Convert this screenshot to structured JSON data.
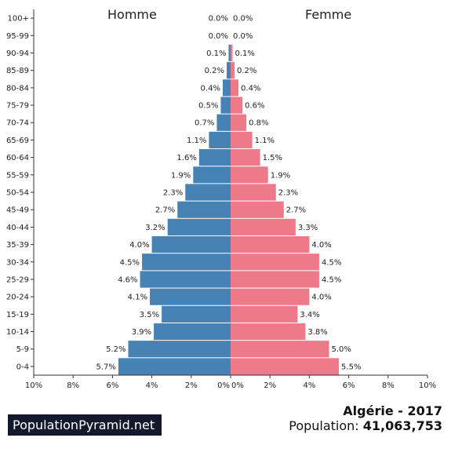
{
  "header": {
    "male_label": "Homme",
    "female_label": "Femme"
  },
  "footer": {
    "brand": "PopulationPyramid.net",
    "country_year": "Algérie - 2017",
    "population_label": "Population:",
    "population_value": "41,063,753"
  },
  "colors": {
    "male": "#4682b4",
    "female": "#ee7989"
  },
  "chart_data": {
    "type": "bar",
    "orientation": "horizontal-pyramid",
    "categories": [
      "100+",
      "95-99",
      "90-94",
      "85-89",
      "80-84",
      "75-79",
      "70-74",
      "65-69",
      "60-64",
      "55-59",
      "50-54",
      "45-49",
      "40-44",
      "35-39",
      "30-34",
      "25-29",
      "20-24",
      "15-19",
      "10-14",
      "5-9",
      "0-4"
    ],
    "series": [
      {
        "name": "Homme",
        "values": [
          0.0,
          0.0,
          0.1,
          0.2,
          0.4,
          0.5,
          0.7,
          1.1,
          1.6,
          1.9,
          2.3,
          2.7,
          3.2,
          4.0,
          4.5,
          4.6,
          4.1,
          3.5,
          3.9,
          5.2,
          5.7
        ],
        "labels": [
          "0.0%",
          "0.0%",
          "0.1%",
          "0.2%",
          "0.4%",
          "0.5%",
          "0.7%",
          "1.1%",
          "1.6%",
          "1.9%",
          "2.3%",
          "2.7%",
          "3.2%",
          "4.0%",
          "4.5%",
          "4.6%",
          "4.1%",
          "3.5%",
          "3.9%",
          "5.2%",
          "5.7%"
        ]
      },
      {
        "name": "Femme",
        "values": [
          0.0,
          0.0,
          0.1,
          0.2,
          0.4,
          0.6,
          0.8,
          1.1,
          1.5,
          1.9,
          2.3,
          2.7,
          3.3,
          4.0,
          4.5,
          4.5,
          4.0,
          3.4,
          3.8,
          5.0,
          5.5
        ],
        "labels": [
          "0.0%",
          "0.0%",
          "0.1%",
          "0.2%",
          "0.4%",
          "0.6%",
          "0.8%",
          "1.1%",
          "1.5%",
          "1.9%",
          "2.3%",
          "2.7%",
          "3.3%",
          "4.0%",
          "4.5%",
          "4.5%",
          "4.0%",
          "3.4%",
          "3.8%",
          "5.0%",
          "5.5%"
        ]
      }
    ],
    "xlim": [
      0,
      10
    ],
    "x_ticks_left": [
      "10%",
      "8%",
      "6%",
      "4%",
      "2%",
      "0%"
    ],
    "x_ticks_right": [
      "0%",
      "2%",
      "4%",
      "6%",
      "8%",
      "10%"
    ],
    "grid": false
  }
}
